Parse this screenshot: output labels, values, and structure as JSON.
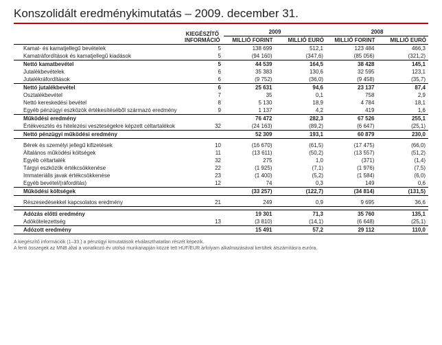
{
  "title": "Konszolidált eredménykimutatás – 2009. december 31.",
  "header": {
    "kieg": "KIEGÉSZÍTŐ INFORMÁCIÓ",
    "years": [
      "2009",
      "2008"
    ],
    "units": [
      "MILLIÓ FORINT",
      "MILLIÓ EURÓ",
      "MILLIÓ FORINT",
      "MILLIÓ EURÓ"
    ]
  },
  "rows": [
    {
      "label": "Kamat- és kamatjellegű bevételek",
      "kieg": "5",
      "v": [
        "138 699",
        "512,1",
        "123 484",
        "466,3"
      ]
    },
    {
      "label": "Kamatráfordítások és kamatjellegű kiadások",
      "kieg": "5",
      "v": [
        "(94 160)",
        "(347,6)",
        "(85 056)",
        "(321,2)"
      ]
    },
    {
      "label": "Nettó kamatbevétel",
      "style": "total rule-above",
      "kieg": "5",
      "v": [
        "44 539",
        "164,5",
        "38 428",
        "145,1"
      ]
    },
    {
      "label": "Jutalékbevételek",
      "kieg": "6",
      "v": [
        "35 383",
        "130,6",
        "32 595",
        "123,1"
      ]
    },
    {
      "label": "Jutalékráfordítások",
      "kieg": "6",
      "v": [
        "(9 752)",
        "(36,0)",
        "(9 458)",
        "(35,7)"
      ]
    },
    {
      "label": "Nettó jutalékbevétel",
      "style": "total rule-above",
      "kieg": "6",
      "v": [
        "25 631",
        "94,6",
        "23 137",
        "87,4"
      ]
    },
    {
      "label": "Osztalékbevétel",
      "kieg": "7",
      "v": [
        "35",
        "0,1",
        "758",
        "2,9"
      ]
    },
    {
      "label": "Nettó kereskedési bevétel",
      "kieg": "8",
      "v": [
        "5 130",
        "18,9",
        "4 784",
        "18,1"
      ]
    },
    {
      "label": "Egyéb pénzügyi eszközök értékesítéséből származó eredmény",
      "kieg": "9",
      "v": [
        "1 137",
        "4,2",
        "419",
        "1,6"
      ]
    },
    {
      "label": "Működési eredmény",
      "style": "total rule-above",
      "kieg": "",
      "v": [
        "76 472",
        "282,3",
        "67 526",
        "255,1"
      ]
    },
    {
      "label": "Értékvesztés és hitelezési veszteségekre képzett céltartalékok",
      "kieg": "32",
      "v": [
        "(24 163)",
        "(89,2)",
        "(6 647)",
        "(25,1)"
      ]
    },
    {
      "label": "Nettó pénzügyi működési eredmény",
      "style": "total rule-above rule-below",
      "kieg": "",
      "v": [
        "52 309",
        "193,1",
        "60 879",
        "230,0"
      ]
    },
    {
      "style": "section-gap"
    },
    {
      "label": "Bérek és személyi jellegű kifizetések",
      "kieg": "10",
      "v": [
        "(16 670)",
        "(61,5)",
        "(17 475)",
        "(66,0)"
      ]
    },
    {
      "label": "Általános működési költségek",
      "kieg": "11",
      "v": [
        "(13 611)",
        "(50,2)",
        "(13 557)",
        "(51,2)"
      ]
    },
    {
      "label": "Egyéb céltartalék",
      "kieg": "32",
      "v": [
        "275",
        "1,0",
        "(371)",
        "(1,4)"
      ]
    },
    {
      "label": "Tárgyi eszközök értékcsökkenése",
      "kieg": "22",
      "v": [
        "(1 925)",
        "(7,1)",
        "(1 976)",
        "(7,5)"
      ]
    },
    {
      "label": "Immateriális javak értékcsökkenése",
      "kieg": "23",
      "v": [
        "(1 400)",
        "(5,2)",
        "(1 584)",
        "(6,0)"
      ]
    },
    {
      "label": "Egyéb bevétel/(ráfordítás)",
      "kieg": "12",
      "v": [
        "74",
        "0,3",
        "149",
        "0,6"
      ]
    },
    {
      "label": "Működési költségek",
      "style": "total rule-above rule-below",
      "kieg": "",
      "v": [
        "(33 257)",
        "(122,7)",
        "(34 814)",
        "(131,5)"
      ]
    },
    {
      "style": "section-gap"
    },
    {
      "label": "Részesedésekkel kapcsolatos eredmény",
      "style": "rule-below",
      "kieg": "21",
      "v": [
        "249",
        "0,9",
        "9 695",
        "36,6"
      ]
    },
    {
      "style": "section-gap"
    },
    {
      "label": "Adózás előtti eredmény",
      "style": "total",
      "kieg": "",
      "v": [
        "19 301",
        "71,3",
        "35 760",
        "135,1"
      ]
    },
    {
      "label": "Adókötelezettség",
      "kieg": "13",
      "v": [
        "(3 810)",
        "(14,1)",
        "(6 648)",
        "(25,1)"
      ]
    },
    {
      "label": "Adózott eredmény",
      "style": "total rule-above rule-below",
      "kieg": "",
      "v": [
        "15 491",
        "57,2",
        "29 112",
        "110,0"
      ]
    }
  ],
  "footnotes": [
    "A kiegészítő információk (1–33.) a pénzügyi kimutatások elválaszthatatlan részét képezik.",
    "A fenti összegek az MNB által a vonatkozó év utolsó munkanapján közzé tett HUF/EUR árfolyam alkalmazásával kerültek átszámításra euróra."
  ],
  "style": {
    "accent": "#c00000",
    "rule": "#000000",
    "text": "#222222"
  }
}
